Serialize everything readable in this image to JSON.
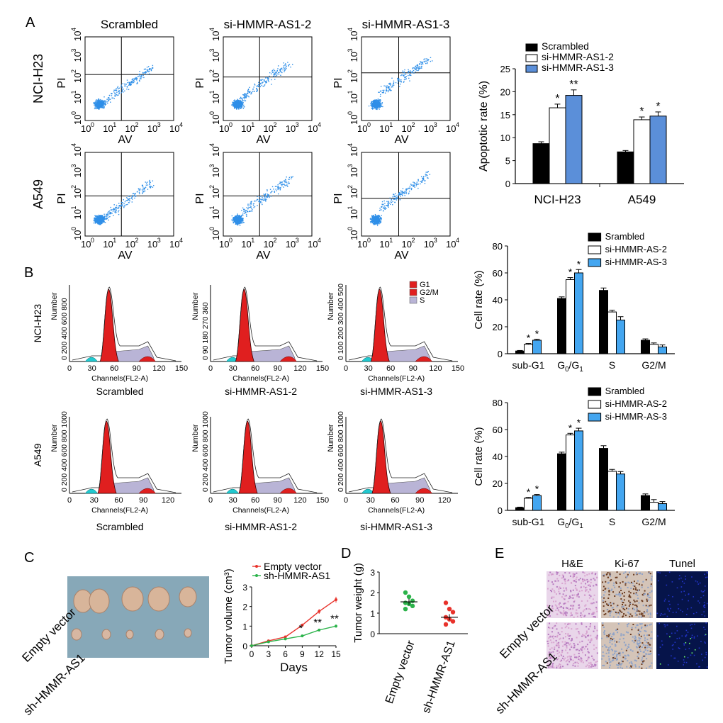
{
  "panel_labels": [
    "A",
    "B",
    "C",
    "D",
    "E"
  ],
  "flow": {
    "columns": [
      "Scrambled",
      "si-HMMR-AS1-2",
      "si-HMMR-AS1-3"
    ],
    "rows": [
      "NCI-H23",
      "A549"
    ],
    "xlabel": "AV",
    "ylabel": "PI",
    "ticks": [
      "0",
      "1",
      "2",
      "3",
      "4"
    ]
  },
  "hist": {
    "rows": [
      "NCI-H23",
      "A549"
    ],
    "columns": [
      "Scrambled",
      "si-HMMR-AS1-2",
      "si-HMMR-AS1-3"
    ],
    "ylabel": "Number",
    "xlabel": "Channels(FL2-A)",
    "legend": [
      "G1",
      "G2/M",
      "S"
    ],
    "yticks": {
      "NCI-H23": [
        [
          "0",
          "200",
          "400",
          "600",
          "800"
        ],
        [
          "0",
          "90",
          "180",
          "270",
          "360"
        ],
        [
          "0",
          "100",
          "200",
          "300",
          "400",
          "500"
        ]
      ],
      "A549": [
        [
          "0",
          "200",
          "400",
          "600",
          "800",
          "1000"
        ],
        [
          "0",
          "200",
          "400",
          "600",
          "800",
          "1000"
        ],
        [
          "0",
          "200",
          "400",
          "600",
          "800",
          "1000"
        ]
      ]
    },
    "xticks": {
      "NCI-H23": [
        [
          "0",
          "30",
          "60",
          "90",
          "120",
          "150"
        ],
        [
          "0",
          "30",
          "60",
          "90",
          "120",
          "150"
        ],
        [
          "0",
          "30",
          "60",
          "90",
          "120",
          "150"
        ]
      ],
      "A549": [
        [
          "0",
          "30",
          "60",
          "90",
          "120"
        ],
        [
          "0",
          "30",
          "60",
          "90",
          "120",
          "150"
        ],
        [
          "0",
          "30",
          "60",
          "90",
          "120"
        ]
      ]
    }
  },
  "colors": {
    "scrambled": "#000000",
    "si2": "#ffffff",
    "si3": "#5b8fd9",
    "si3_cycle": "#44a6f0",
    "flow_dot": "#2f8fe8",
    "g1": "#e01f1f",
    "s_phase": "#b9b4d6",
    "subg1": "#22c9d0",
    "empty_vector": "#e8322b",
    "sh": "#2bb34a",
    "he_bg": "#e9d6ea",
    "ki_bg": "#d4c4b8",
    "tunel_bg": "#06144a"
  },
  "chart_data": [
    {
      "type": "bar",
      "id": "apoptosis",
      "title": "",
      "ylabel": "Apoptotic rate (%)",
      "xlabel": "",
      "ylim": [
        0,
        25
      ],
      "yticks": [
        "0",
        "5",
        "10",
        "15",
        "20",
        "25"
      ],
      "categories": [
        "NCI-H23",
        "A549"
      ],
      "series": [
        {
          "name": "Scrambled",
          "values": [
            8.7,
            6.9
          ],
          "errors": [
            0.4,
            0.3
          ],
          "sig": [
            "",
            ""
          ]
        },
        {
          "name": "si-HMMR-AS1-2",
          "values": [
            16.5,
            13.9
          ],
          "errors": [
            0.8,
            0.6
          ],
          "sig": [
            "*",
            "*"
          ]
        },
        {
          "name": "si-HMMR-AS1-3",
          "values": [
            19.2,
            14.7
          ],
          "errors": [
            1.2,
            0.9
          ],
          "sig": [
            "**",
            "*"
          ]
        }
      ],
      "legend": "top-left"
    },
    {
      "type": "bar",
      "id": "cycle_h23",
      "ylabel": "Cell rate (%)",
      "ylim": [
        0,
        80
      ],
      "yticks": [
        "0",
        "20",
        "40",
        "60",
        "80"
      ],
      "categories": [
        "sub-G1",
        "G0/G1",
        "S",
        "G2/M"
      ],
      "series": [
        {
          "name": "Srambled",
          "values": [
            2,
            41,
            47,
            10
          ],
          "errors": [
            0.4,
            1.2,
            1.8,
            1.0
          ],
          "sig": [
            "",
            "",
            "",
            ""
          ]
        },
        {
          "name": "si-HMMR-AS-2",
          "values": [
            7,
            55,
            31,
            7
          ],
          "errors": [
            0.6,
            1.5,
            1.3,
            1.0
          ],
          "sig": [
            "*",
            "*",
            "",
            ""
          ]
        },
        {
          "name": "si-HMMR-AS-3",
          "values": [
            10,
            60,
            25,
            5
          ],
          "errors": [
            0.8,
            2.5,
            2.5,
            1.5
          ],
          "sig": [
            "*",
            "*",
            "",
            ""
          ]
        }
      ],
      "legend": "top-right"
    },
    {
      "type": "bar",
      "id": "cycle_a549",
      "ylabel": "Cell rate (%)",
      "ylim": [
        0,
        80
      ],
      "yticks": [
        "0",
        "20",
        "40",
        "60",
        "80"
      ],
      "categories": [
        "sub-G1",
        "G0/G1",
        "S",
        "G2/M"
      ],
      "series": [
        {
          "name": "Srambled",
          "values": [
            2,
            42,
            46,
            11
          ],
          "errors": [
            0.4,
            1.2,
            2.0,
            1.2
          ],
          "sig": [
            "",
            "",
            "",
            ""
          ]
        },
        {
          "name": "si-HMMR-AS-2",
          "values": [
            9,
            56,
            29,
            6
          ],
          "errors": [
            0.6,
            1.2,
            1.4,
            2.0
          ],
          "sig": [
            "*",
            "*",
            "",
            ""
          ]
        },
        {
          "name": "si-HMMR-AS-3",
          "values": [
            11,
            59,
            27,
            5
          ],
          "errors": [
            0.8,
            2.0,
            1.8,
            1.5
          ],
          "sig": [
            "*",
            "*",
            "",
            ""
          ]
        }
      ],
      "legend": "top-right"
    },
    {
      "type": "line",
      "id": "tumor_volume",
      "ylabel": "Tumor volume (cm³)",
      "xlabel": "Days",
      "xlim": [
        0,
        15
      ],
      "ylim": [
        0,
        3
      ],
      "xticks": [
        "0",
        "3",
        "6",
        "9",
        "12",
        "15"
      ],
      "yticks": [
        "0",
        "1",
        "2",
        "3"
      ],
      "x": [
        0,
        3,
        6,
        9,
        12,
        15
      ],
      "series": [
        {
          "name": "Empty vector",
          "values": [
            0,
            0.25,
            0.45,
            1.05,
            1.75,
            2.35
          ],
          "errors": [
            0,
            0.03,
            0.05,
            0.08,
            0.12,
            0.15
          ]
        },
        {
          "name": "sh-HMMR-AS1",
          "values": [
            0,
            0.2,
            0.35,
            0.5,
            0.8,
            1.0
          ],
          "errors": [
            0,
            0.03,
            0.04,
            0.05,
            0.06,
            0.08
          ]
        }
      ],
      "sig": [
        {
          "x": 9,
          "label": "*"
        },
        {
          "x": 12,
          "label": "**"
        },
        {
          "x": 15,
          "label": "**"
        }
      ],
      "legend": "top-left"
    },
    {
      "type": "scatter",
      "id": "tumor_weight",
      "ylabel": "Tumor weight (g)",
      "ylim": [
        0,
        3
      ],
      "yticks": [
        "0",
        "1",
        "2",
        "3"
      ],
      "categories": [
        "Empty vector",
        "sh-HMMR-AS1"
      ],
      "groups": [
        {
          "name": "Empty vector",
          "values": [
            2.0,
            1.8,
            1.6,
            1.5,
            1.45,
            1.35,
            1.2
          ],
          "mean": 1.55
        },
        {
          "name": "sh-HMMR-AS1",
          "values": [
            1.5,
            1.2,
            1.05,
            0.8,
            0.7,
            0.6,
            0.45
          ],
          "mean": 0.8
        }
      ]
    }
  ],
  "xenograft": {
    "rows": [
      "Empty vector",
      "sh-HMMR-AS1"
    ]
  },
  "staining": {
    "columns": [
      "H&E",
      "Ki-67",
      "Tunel"
    ],
    "rows": [
      "Empty vector",
      "sh-HMMR-AS1"
    ]
  }
}
